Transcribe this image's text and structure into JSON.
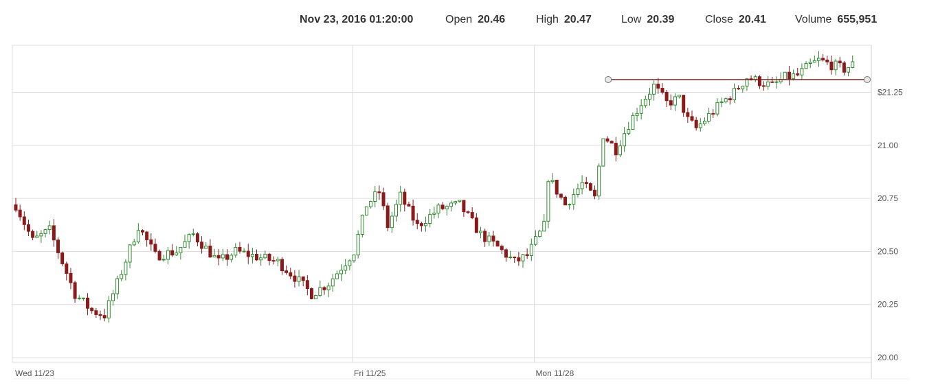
{
  "header": {
    "datetime": "Nov 23, 2016 01:20:00",
    "open_label": "Open",
    "open_value": "20.46",
    "high_label": "High",
    "high_value": "20.47",
    "low_label": "Low",
    "low_value": "20.39",
    "close_label": "Close",
    "close_value": "20.41",
    "volume_label": "Volume",
    "volume_value": "655,951"
  },
  "colors": {
    "up": "#2f8a2f",
    "down": "#8b1a1a",
    "grid": "#dddddd",
    "line": "#7a1f1f"
  },
  "chart_data": {
    "type": "candlestick",
    "title": "",
    "xlabel": "",
    "ylabel": "",
    "ylim": [
      20.0,
      21.5
    ],
    "y_ticks": [
      {
        "value": 20.0,
        "label": "20.00"
      },
      {
        "value": 20.25,
        "label": "20.25"
      },
      {
        "value": 20.5,
        "label": "20.50"
      },
      {
        "value": 20.75,
        "label": "20.75"
      },
      {
        "value": 21.0,
        "label": "21.00"
      },
      {
        "value": 21.25,
        "label": "$21.25"
      }
    ],
    "x_ticks": [
      {
        "index": 0,
        "label": "Wed 11/23"
      },
      {
        "index": 80,
        "label": "Fri 11/25"
      },
      {
        "index": 123,
        "label": "Mon 11/28"
      }
    ],
    "count": 199,
    "horizontal_line": {
      "value": 21.31,
      "from_index": 141,
      "to_index": 202
    },
    "key_points": [
      {
        "i": 0,
        "c": 20.72
      },
      {
        "i": 4,
        "c": 20.55
      },
      {
        "i": 8,
        "c": 20.6
      },
      {
        "i": 14,
        "c": 20.3
      },
      {
        "i": 18,
        "c": 20.22
      },
      {
        "i": 21,
        "c": 20.2
      },
      {
        "i": 24,
        "c": 20.35
      },
      {
        "i": 29,
        "c": 20.62
      },
      {
        "i": 33,
        "c": 20.48
      },
      {
        "i": 38,
        "c": 20.5
      },
      {
        "i": 42,
        "c": 20.58
      },
      {
        "i": 48,
        "c": 20.45
      },
      {
        "i": 52,
        "c": 20.5
      },
      {
        "i": 56,
        "c": 20.48
      },
      {
        "i": 62,
        "c": 20.45
      },
      {
        "i": 66,
        "c": 20.38
      },
      {
        "i": 70,
        "c": 20.3
      },
      {
        "i": 74,
        "c": 20.35
      },
      {
        "i": 80,
        "c": 20.5
      },
      {
        "i": 83,
        "c": 20.72
      },
      {
        "i": 86,
        "c": 20.78
      },
      {
        "i": 88,
        "c": 20.62
      },
      {
        "i": 91,
        "c": 20.76
      },
      {
        "i": 95,
        "c": 20.62
      },
      {
        "i": 100,
        "c": 20.7
      },
      {
        "i": 105,
        "c": 20.72
      },
      {
        "i": 110,
        "c": 20.58
      },
      {
        "i": 114,
        "c": 20.52
      },
      {
        "i": 118,
        "c": 20.45
      },
      {
        "i": 121,
        "c": 20.48
      },
      {
        "i": 125,
        "c": 20.62
      },
      {
        "i": 126,
        "c": 20.85
      },
      {
        "i": 130,
        "c": 20.72
      },
      {
        "i": 134,
        "c": 20.82
      },
      {
        "i": 137,
        "c": 20.75
      },
      {
        "i": 139,
        "c": 21.05
      },
      {
        "i": 142,
        "c": 20.98
      },
      {
        "i": 145,
        "c": 21.1
      },
      {
        "i": 148,
        "c": 21.2
      },
      {
        "i": 151,
        "c": 21.28
      },
      {
        "i": 154,
        "c": 21.2
      },
      {
        "i": 157,
        "c": 21.22
      },
      {
        "i": 159,
        "c": 21.12
      },
      {
        "i": 161,
        "c": 21.08
      },
      {
        "i": 164,
        "c": 21.14
      },
      {
        "i": 167,
        "c": 21.2
      },
      {
        "i": 170,
        "c": 21.25
      },
      {
        "i": 173,
        "c": 21.32
      },
      {
        "i": 176,
        "c": 21.3
      },
      {
        "i": 179,
        "c": 21.28
      },
      {
        "i": 182,
        "c": 21.32
      },
      {
        "i": 185,
        "c": 21.33
      },
      {
        "i": 188,
        "c": 21.38
      },
      {
        "i": 190,
        "c": 21.4
      },
      {
        "i": 193,
        "c": 21.38
      },
      {
        "i": 196,
        "c": 21.36
      },
      {
        "i": 198,
        "c": 21.38
      }
    ]
  }
}
